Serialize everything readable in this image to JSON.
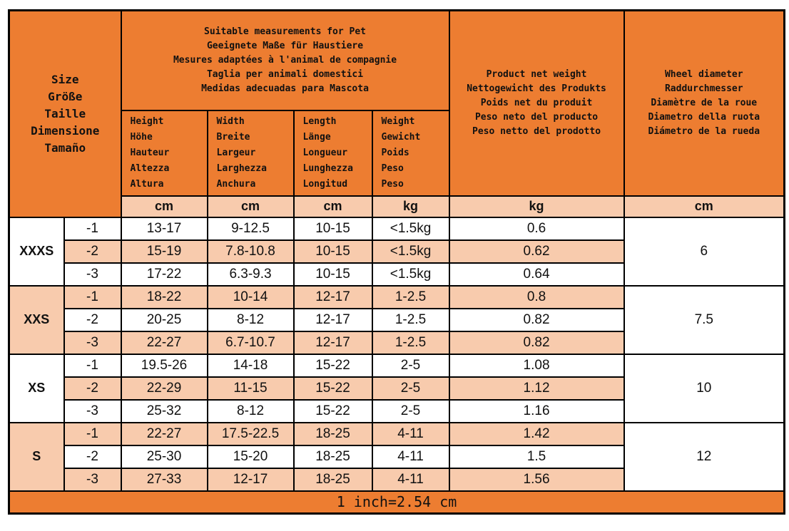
{
  "colors": {
    "header": "#ED7D31",
    "stripe": "#F8CBAD",
    "plain": "#FFFFFF"
  },
  "header": {
    "size": "Size\nGröße\nTaille\nDimensione\nTamaño",
    "suitable": "Suitable measurements for Pet\nGeeignete Maße für Haustiere\nMesures adaptées à l'animal de compagnie\nTaglia per animali domestici\nMedidas adecuadas para Mascota",
    "net_weight": "Product net weight\nNettogewicht des Produkts\nPoids net du produit\nPeso neto del producto\nPeso netto del prodotto",
    "wheel": "Wheel diameter\nRaddurchmesser\nDiamètre de la roue\nDiametro della ruota\nDiámetro de la rueda",
    "height": "Height\nHöhe\nHauteur\nAltezza\nAltura",
    "width": "Width\nBreite\nLargeur\nLarghezza\nAnchura",
    "length": "Length\nLänge\nLongueur\nLunghezza\nLongitud",
    "weight": "Weight\nGewicht\nPoids\nPeso\nPeso",
    "units": [
      "cm",
      "cm",
      "cm",
      "kg",
      "kg",
      "cm"
    ]
  },
  "groups": [
    {
      "size": "XXXS",
      "wheel": "6",
      "rows": [
        [
          "-1",
          "13-17",
          "9-12.5",
          "10-15",
          "<1.5kg",
          "0.6"
        ],
        [
          "-2",
          "15-19",
          "7.8-10.8",
          "10-15",
          "<1.5kg",
          "0.62"
        ],
        [
          "-3",
          "17-22",
          "6.3-9.3",
          "10-15",
          "<1.5kg",
          "0.64"
        ]
      ]
    },
    {
      "size": "XXS",
      "wheel": "7.5",
      "rows": [
        [
          "-1",
          "18-22",
          "10-14",
          "12-17",
          "1-2.5",
          "0.8"
        ],
        [
          "-2",
          "20-25",
          "8-12",
          "12-17",
          "1-2.5",
          "0.82"
        ],
        [
          "-3",
          "22-27",
          "6.7-10.7",
          "12-17",
          "1-2.5",
          "0.82"
        ]
      ]
    },
    {
      "size": "XS",
      "wheel": "10",
      "rows": [
        [
          "-1",
          "19.5-26",
          "14-18",
          "15-22",
          "2-5",
          "1.08"
        ],
        [
          "-2",
          "22-29",
          "11-15",
          "15-22",
          "2-5",
          "1.12"
        ],
        [
          "-3",
          "25-32",
          "8-12",
          "15-22",
          "2-5",
          "1.16"
        ]
      ]
    },
    {
      "size": "S",
      "wheel": "12",
      "rows": [
        [
          "-1",
          "22-27",
          "17.5-22.5",
          "18-25",
          "4-11",
          "1.42"
        ],
        [
          "-2",
          "25-30",
          "15-20",
          "18-25",
          "4-11",
          "1.5"
        ],
        [
          "-3",
          "27-33",
          "12-17",
          "18-25",
          "4-11",
          "1.56"
        ]
      ]
    }
  ],
  "footer": "1 inch=2.54 cm"
}
